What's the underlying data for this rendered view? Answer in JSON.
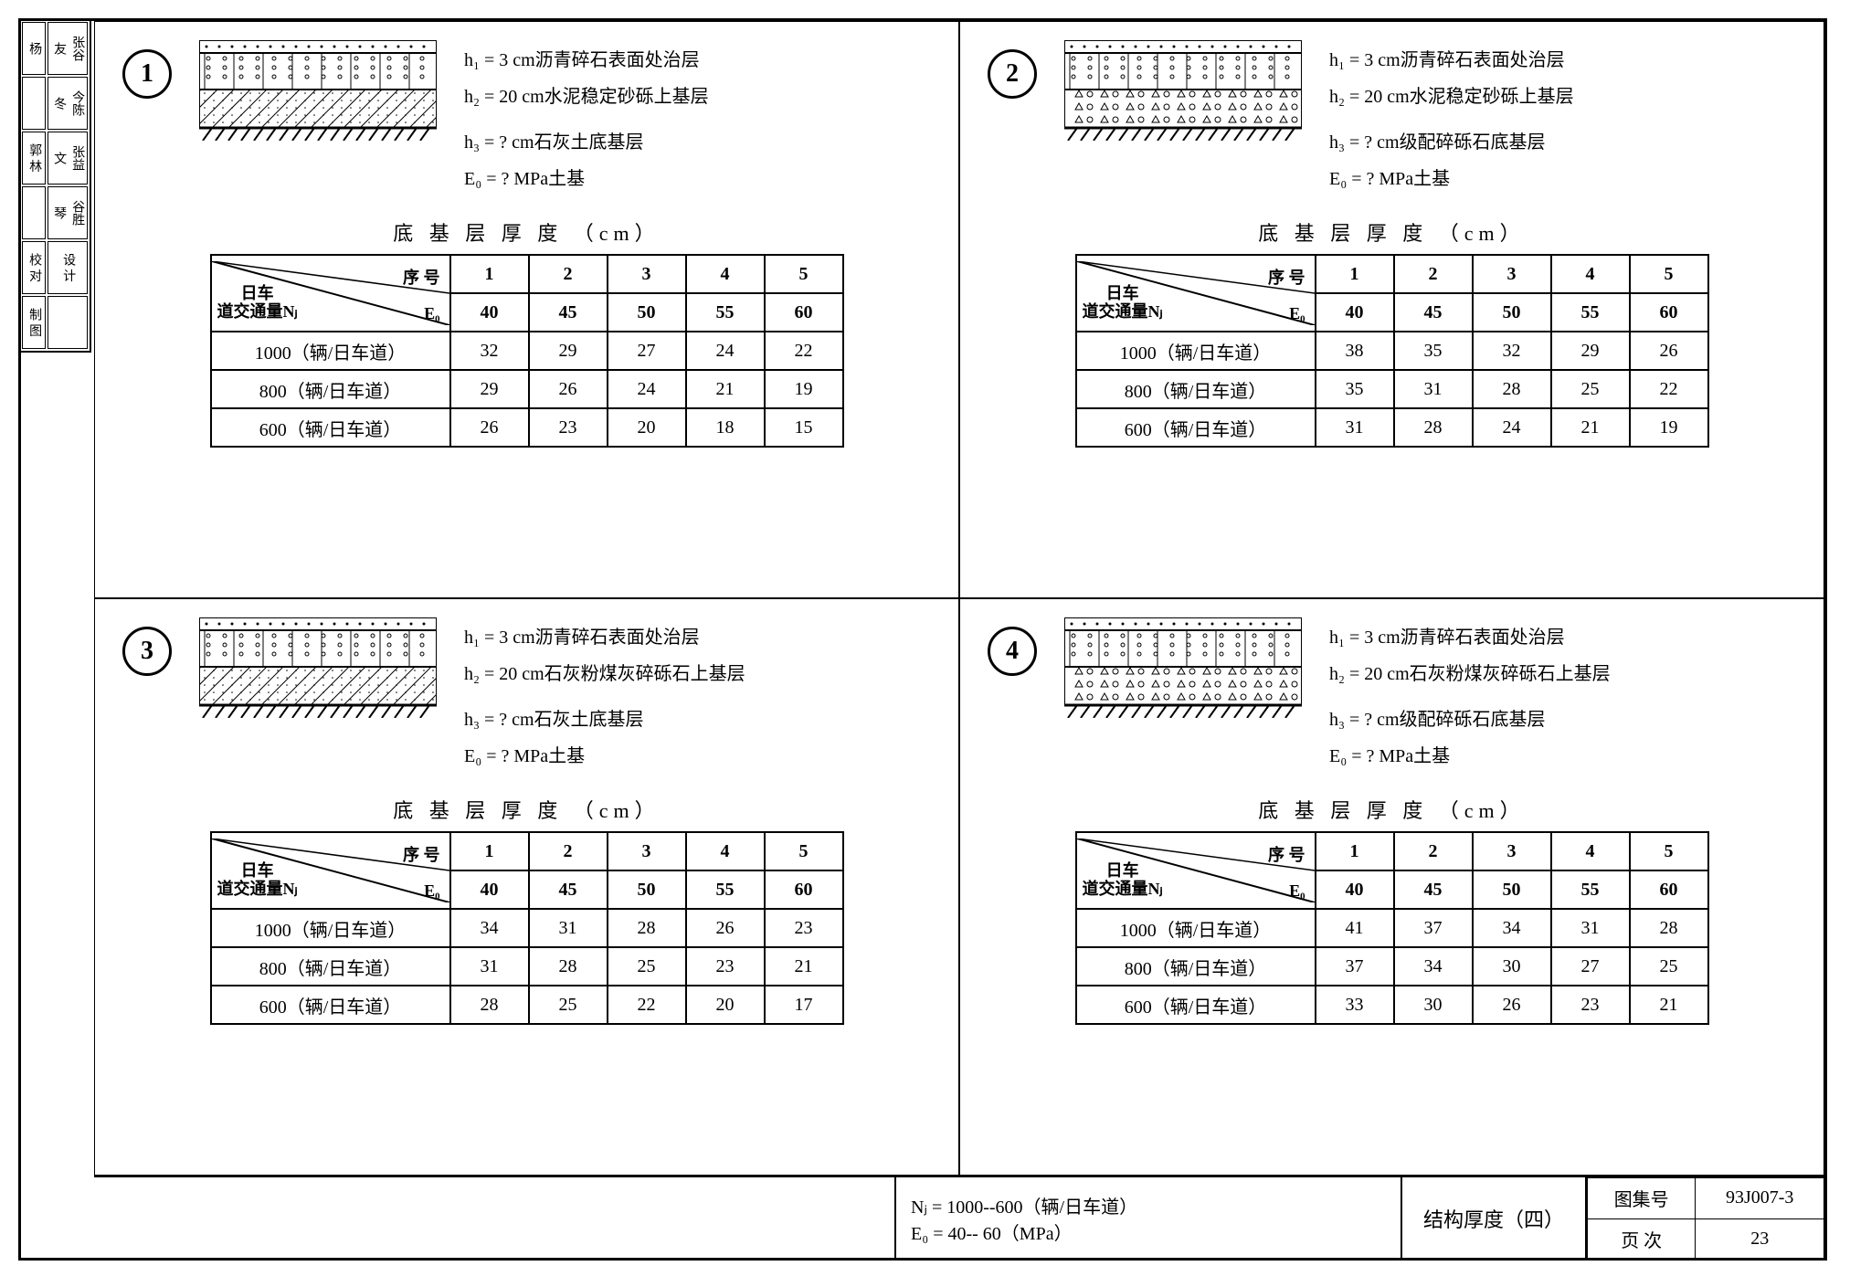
{
  "side_labels": {
    "r1c1": "杨",
    "r1c2": "张谷友",
    "r2c1": "",
    "r2c2": "今陈冬",
    "r3c1": "郭 林",
    "r3c2": "张益文",
    "r4c1": "",
    "r4c2": "谷胜琴",
    "r5c1": "校 对",
    "r5c2": "",
    "r6c1": "设 计",
    "r6c2": "",
    "r7c1": "制 图",
    "r7c2": ""
  },
  "panels": [
    {
      "num": "1",
      "h1": "h₁ =  3 cm沥青碎石表面处治层",
      "h2": "h₂ = 20 cm水泥稳定砂砾上基层",
      "h3": "h₃ =  ? cm石灰土底基层",
      "e0": "E₀ =  ? MPa土基",
      "rows": [
        {
          "label": "1000（辆/日车道）",
          "v": [
            "32",
            "29",
            "27",
            "24",
            "22"
          ]
        },
        {
          "label": "800（辆/日车道）",
          "v": [
            "29",
            "26",
            "24",
            "21",
            "19"
          ]
        },
        {
          "label": "600（辆/日车道）",
          "v": [
            "26",
            "23",
            "20",
            "18",
            "15"
          ]
        }
      ]
    },
    {
      "num": "2",
      "h1": "h₁ =  3 cm沥青碎石表面处治层",
      "h2": "h₂ = 20 cm水泥稳定砂砾上基层",
      "h3": "h₃ =  ? cm级配碎砾石底基层",
      "e0": "E₀ =  ? MPa土基",
      "rows": [
        {
          "label": "1000（辆/日车道）",
          "v": [
            "38",
            "35",
            "32",
            "29",
            "26"
          ]
        },
        {
          "label": "800（辆/日车道）",
          "v": [
            "35",
            "31",
            "28",
            "25",
            "22"
          ]
        },
        {
          "label": "600（辆/日车道）",
          "v": [
            "31",
            "28",
            "24",
            "21",
            "19"
          ]
        }
      ]
    },
    {
      "num": "3",
      "h1": "h₁ =  3 cm沥青碎石表面处治层",
      "h2": "h₂ = 20 cm石灰粉煤灰碎砾石上基层",
      "h3": "h₃ =  ? cm石灰土底基层",
      "e0": "E₀ =  ? MPa土基",
      "rows": [
        {
          "label": "1000（辆/日车道）",
          "v": [
            "34",
            "31",
            "28",
            "26",
            "23"
          ]
        },
        {
          "label": "800（辆/日车道）",
          "v": [
            "31",
            "28",
            "25",
            "23",
            "21"
          ]
        },
        {
          "label": "600（辆/日车道）",
          "v": [
            "28",
            "25",
            "22",
            "20",
            "17"
          ]
        }
      ]
    },
    {
      "num": "4",
      "h1": "h₁ =  3 cm沥青碎石表面处治层",
      "h2": "h₂ = 20 cm石灰粉煤灰碎砾石上基层",
      "h3": "h₃ =  ? cm级配碎砾石底基层",
      "e0": "E₀ =  ? MPa土基",
      "rows": [
        {
          "label": "1000（辆/日车道）",
          "v": [
            "41",
            "37",
            "34",
            "31",
            "28"
          ]
        },
        {
          "label": "800（辆/日车道）",
          "v": [
            "37",
            "34",
            "30",
            "27",
            "25"
          ]
        },
        {
          "label": "600（辆/日车道）",
          "v": [
            "33",
            "30",
            "26",
            "23",
            "21"
          ]
        }
      ]
    }
  ],
  "table_common": {
    "title": "底 基 层 厚 度  （cm）",
    "seq_label": "序 号",
    "e0_label": "E₀",
    "nj_label_a": "日车",
    "nj_label_b": "道交通量Nⱼ",
    "seq": [
      "1",
      "2",
      "3",
      "4",
      "5"
    ],
    "e0_vals": [
      "40",
      "45",
      "50",
      "55",
      "60"
    ]
  },
  "footer": {
    "nj_text": "Nⱼ = 1000--600（辆/日车道）",
    "e0_text": "E₀ =   40-- 60（MPa）",
    "mid_title": "结构厚度（四）",
    "set_label": "图集号",
    "set_value": "93J007-3",
    "page_label": "页    次",
    "page_value": "23"
  },
  "style": {
    "border_color": "#000000",
    "bg_color": "#ffffff",
    "font_size_body": 18,
    "font_size_table": 20,
    "font_size_title": 22,
    "strata_width": 260,
    "strata_heights": {
      "h1": 14,
      "h2": 40,
      "h3": 42,
      "ground": 14
    }
  }
}
